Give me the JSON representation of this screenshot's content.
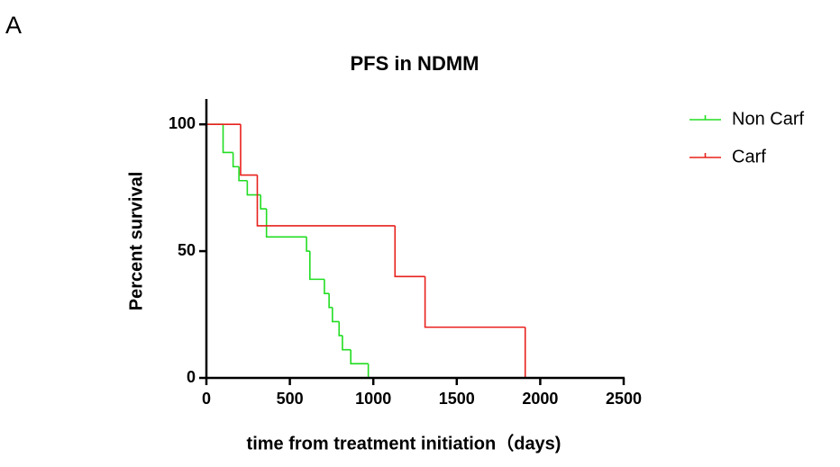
{
  "panel_label": "A",
  "chart_data": {
    "type": "line",
    "step": "post",
    "title": "PFS in NDMM",
    "xlabel": "time from treatment initiation（days)",
    "ylabel": "Percent survival",
    "xlim": [
      0,
      2500
    ],
    "xticks": [
      0,
      500,
      1000,
      1500,
      2000,
      2500
    ],
    "ylim": [
      0,
      110
    ],
    "yticks": [
      0,
      50,
      100
    ],
    "legend": "right",
    "series": [
      {
        "name": "Non Carf",
        "color": "#22dd22",
        "x": [
          0,
          100,
          160,
          195,
          245,
          325,
          360,
          600,
          620,
          707,
          735,
          755,
          795,
          815,
          865,
          970
        ],
        "values": [
          100,
          88.9,
          83.3,
          77.8,
          72.2,
          66.7,
          55.6,
          50,
          38.9,
          33.3,
          27.8,
          22.2,
          16.7,
          11.1,
          5.6,
          0
        ]
      },
      {
        "name": "Carf",
        "color": "#e8201c",
        "x": [
          0,
          205,
          305,
          1130,
          1310,
          1910
        ],
        "values": [
          100,
          80,
          60,
          40,
          20,
          0
        ]
      }
    ]
  }
}
